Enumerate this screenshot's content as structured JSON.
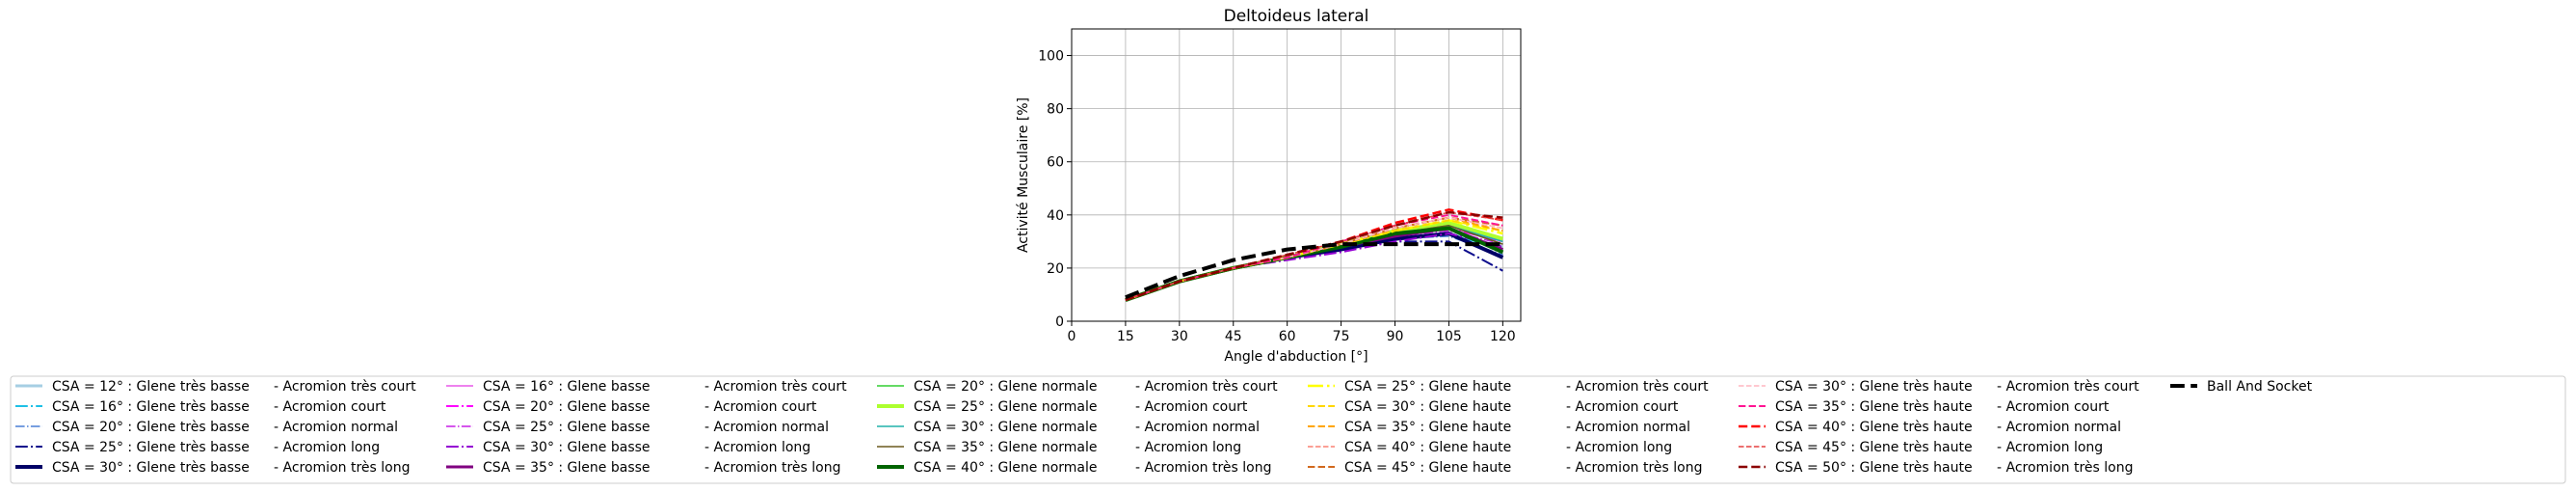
{
  "chart_data": {
    "type": "line",
    "title": "Deltoideus lateral",
    "xlabel": "Angle d'abduction [°]",
    "ylabel": "Activité Musculaire [%]",
    "xlim": [
      0,
      125
    ],
    "ylim": [
      0,
      110
    ],
    "xticks": [
      0,
      15,
      30,
      45,
      60,
      75,
      90,
      105,
      120
    ],
    "yticks": [
      0,
      20,
      40,
      60,
      80,
      100
    ],
    "grid": true,
    "legend_position": "bottom",
    "x": [
      15,
      30,
      45,
      60,
      75,
      90,
      105,
      120
    ],
    "series": [
      {
        "name": "CSA = 12° : Glene très basse",
        "suffix": "-  Acromion très court",
        "color": "#a6cee3",
        "dash": "solid",
        "width": 3,
        "values": [
          8,
          15,
          20,
          24,
          28,
          31,
          33,
          28
        ]
      },
      {
        "name": "CSA = 16° : Glene très basse",
        "suffix": "-  Acromion court",
        "color": "#1ec0e6",
        "dash": "dashdot",
        "width": 2,
        "values": [
          8,
          15,
          20,
          24,
          28,
          31,
          33,
          27
        ]
      },
      {
        "name": "CSA = 20° : Glene très basse",
        "suffix": "-  Acromion normal",
        "color": "#4a7fd6",
        "dash": "dashdot",
        "width": 1.5,
        "values": [
          8,
          15,
          20,
          24,
          28,
          31,
          32,
          25
        ]
      },
      {
        "name": "CSA = 25° : Glene très basse",
        "suffix": "-  Acromion long",
        "color": "#0b0b8c",
        "dash": "dashdot",
        "width": 2,
        "values": [
          8,
          15,
          20,
          24,
          27,
          30,
          30,
          19
        ]
      },
      {
        "name": "CSA = 30° : Glene très basse",
        "suffix": "-  Acromion très long",
        "color": "#000066",
        "dash": "solid",
        "width": 4,
        "values": [
          8,
          15,
          20,
          24,
          27,
          31,
          33,
          24
        ]
      },
      {
        "name": "CSA = 16° : Glene basse",
        "suffix": "-  Acromion très court",
        "color": "#ee82ee",
        "dash": "solid",
        "width": 2,
        "values": [
          8,
          15,
          20,
          24,
          28,
          32,
          35,
          30
        ]
      },
      {
        "name": "CSA = 20° : Glene basse",
        "suffix": "-  Acromion court",
        "color": "#ff00ff",
        "dash": "dashdot",
        "width": 2,
        "values": [
          8,
          15,
          20,
          24,
          28,
          32,
          35,
          30
        ]
      },
      {
        "name": "CSA = 25° : Glene basse",
        "suffix": "-  Acromion normal",
        "color": "#c71ee6",
        "dash": "dashdot",
        "width": 1.5,
        "values": [
          8,
          15,
          20,
          24,
          28,
          32,
          34,
          29
        ]
      },
      {
        "name": "CSA = 30° : Glene basse",
        "suffix": "-  Acromion long",
        "color": "#9400d3",
        "dash": "dashdot",
        "width": 2,
        "values": [
          8,
          15,
          20,
          23,
          26,
          30,
          33,
          28
        ]
      },
      {
        "name": "CSA = 35° : Glene basse",
        "suffix": "-  Acromion très long",
        "color": "#800080",
        "dash": "solid",
        "width": 3,
        "values": [
          8,
          15,
          20,
          24,
          28,
          32,
          35,
          27
        ]
      },
      {
        "name": "CSA = 20° : Glene normale",
        "suffix": "-  Acromion très court",
        "color": "#32cd32",
        "dash": "solid",
        "width": 1.5,
        "values": [
          8,
          15,
          20,
          24,
          28,
          33,
          36,
          29
        ]
      },
      {
        "name": "CSA = 25° : Glene normale",
        "suffix": "-  Acromion court",
        "color": "#adff2f",
        "dash": "solid",
        "width": 4,
        "values": [
          8,
          15,
          20,
          24,
          29,
          34,
          37,
          31
        ]
      },
      {
        "name": "CSA = 30° : Glene normale",
        "suffix": "-  Acromion normal",
        "color": "#20b2aa",
        "dash": "solid",
        "width": 1.5,
        "values": [
          8,
          15,
          20,
          24,
          28,
          33,
          36,
          30
        ]
      },
      {
        "name": "CSA = 35° : Glene normale",
        "suffix": "-  Acromion long",
        "color": "#6b5a1e",
        "dash": "solid",
        "width": 1.5,
        "values": [
          8,
          15,
          20,
          24,
          28,
          33,
          36,
          29
        ]
      },
      {
        "name": "CSA = 40° : Glene normale",
        "suffix": "-  Acromion très long",
        "color": "#006400",
        "dash": "solid",
        "width": 4,
        "values": [
          8,
          15,
          20,
          24,
          28,
          33,
          35,
          26
        ]
      },
      {
        "name": "CSA = 25° : Glene haute",
        "suffix": "-  Acromion très court",
        "color": "#ffff00",
        "dash": "dashdot",
        "width": 2.5,
        "values": [
          8,
          15,
          20,
          24,
          29,
          34,
          38,
          33
        ]
      },
      {
        "name": "CSA = 30° : Glene haute",
        "suffix": "-  Acromion court",
        "color": "#ffd700",
        "dash": "dashed",
        "width": 2,
        "values": [
          8,
          15,
          20,
          24,
          29,
          34,
          38,
          34
        ]
      },
      {
        "name": "CSA = 35° : Glene haute",
        "suffix": "-  Acromion normal",
        "color": "#ffa500",
        "dash": "dashed",
        "width": 2,
        "values": [
          8,
          15,
          20,
          24,
          29,
          35,
          39,
          34
        ]
      },
      {
        "name": "CSA = 40° : Glene haute",
        "suffix": "-  Acromion long",
        "color": "#fa8072",
        "dash": "dashed",
        "width": 1.5,
        "values": [
          8,
          15,
          20,
          24,
          29,
          35,
          39,
          35
        ]
      },
      {
        "name": "CSA = 45° : Glene haute",
        "suffix": "-  Acromion très long",
        "color": "#d2691e",
        "dash": "dashed",
        "width": 2,
        "values": [
          8,
          15,
          20,
          24,
          29,
          35,
          39,
          36
        ]
      },
      {
        "name": "CSA = 30° : Glene très haute",
        "suffix": "-  Acromion très court",
        "color": "#ffb6c1",
        "dash": "dashed",
        "width": 1.5,
        "values": [
          8,
          15,
          20,
          24,
          29,
          35,
          39,
          35
        ]
      },
      {
        "name": "CSA = 35° : Glene très haute",
        "suffix": "-  Acromion court",
        "color": "#ff1493",
        "dash": "dashed",
        "width": 2,
        "values": [
          8,
          15,
          20,
          24,
          30,
          36,
          40,
          36
        ]
      },
      {
        "name": "CSA = 40° : Glene très haute",
        "suffix": "-  Acromion normal",
        "color": "#ff0000",
        "dash": "dashed",
        "width": 2.5,
        "values": [
          8,
          15,
          20,
          25,
          30,
          37,
          42,
          38
        ]
      },
      {
        "name": "CSA = 45° : Glene très haute",
        "suffix": "-  Acromion long",
        "color": "#e64040",
        "dash": "dashed",
        "width": 1.5,
        "values": [
          8,
          15,
          20,
          25,
          30,
          36,
          41,
          38
        ]
      },
      {
        "name": "CSA = 50° : Glene très haute",
        "suffix": "-  Acromion très long",
        "color": "#8b0000",
        "dash": "dashed",
        "width": 2.5,
        "values": [
          8,
          15,
          20,
          25,
          30,
          36,
          41,
          39
        ]
      },
      {
        "name": "Ball And Socket",
        "suffix": "",
        "color": "#000000",
        "dash": "dashed",
        "width": 4,
        "values": [
          9,
          17,
          23,
          27,
          29,
          29,
          29,
          29
        ]
      }
    ]
  }
}
